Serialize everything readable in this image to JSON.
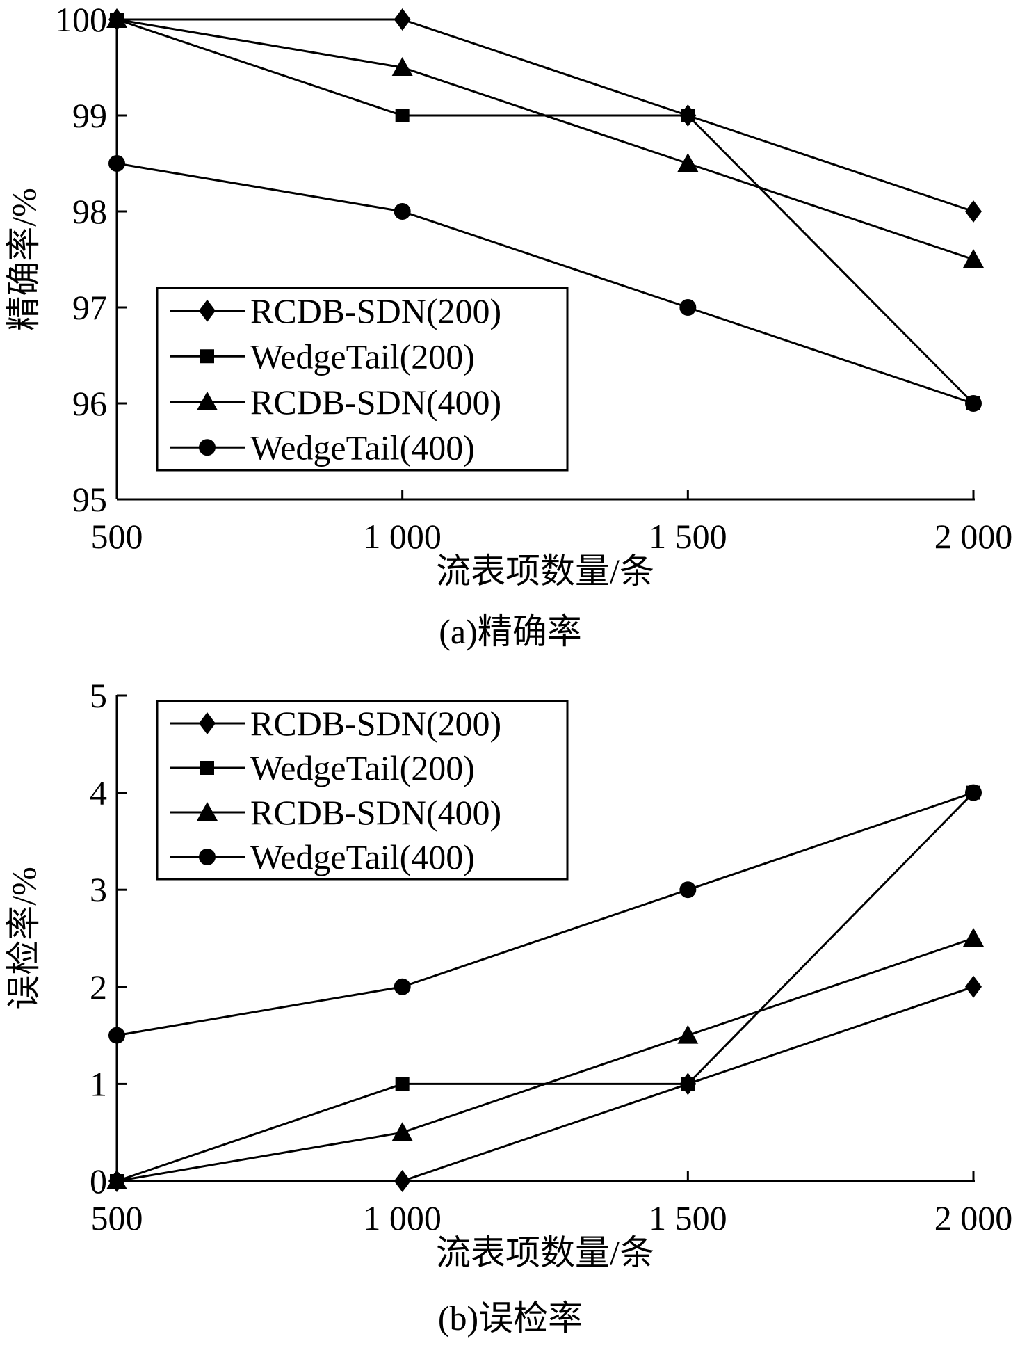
{
  "chart_data": [
    {
      "type": "line",
      "title": "",
      "caption": "(a)精确率",
      "xlabel": "流表项数量/条",
      "ylabel": "精确率/%",
      "x": [
        500,
        1000,
        1500,
        2000
      ],
      "x_tick_labels": [
        "500",
        "1 000",
        "1 500",
        "2 000"
      ],
      "ylim": [
        95,
        100
      ],
      "y_ticks": [
        95,
        96,
        97,
        98,
        99,
        100
      ],
      "y_tick_labels": [
        "95",
        "96",
        "97",
        "98",
        "99",
        "100"
      ],
      "legend_position": "lower-left",
      "series": [
        {
          "name": "RCDB-SDN(200)",
          "marker": "diamond",
          "values": [
            100,
            100,
            99,
            98
          ]
        },
        {
          "name": "WedgeTail(200)",
          "marker": "square",
          "values": [
            100,
            99,
            99,
            96
          ]
        },
        {
          "name": "RCDB-SDN(400)",
          "marker": "triangle",
          "values": [
            100,
            99.5,
            98.5,
            97.5
          ]
        },
        {
          "name": "WedgeTail(400)",
          "marker": "circle",
          "values": [
            98.5,
            98,
            97,
            96
          ]
        }
      ]
    },
    {
      "type": "line",
      "title": "",
      "caption": "(b)误检率",
      "xlabel": "流表项数量/条",
      "ylabel": "误检率/%",
      "x": [
        500,
        1000,
        1500,
        2000
      ],
      "x_tick_labels": [
        "500",
        "1 000",
        "1 500",
        "2 000"
      ],
      "ylim": [
        0,
        5
      ],
      "y_ticks": [
        0,
        1,
        2,
        3,
        4,
        5
      ],
      "y_tick_labels": [
        "0",
        "1",
        "2",
        "3",
        "4",
        "5"
      ],
      "legend_position": "top-left",
      "series": [
        {
          "name": "RCDB-SDN(200)",
          "marker": "diamond",
          "values": [
            0,
            0,
            1,
            2
          ]
        },
        {
          "name": "WedgeTail(200)",
          "marker": "square",
          "values": [
            0,
            1,
            1,
            4
          ]
        },
        {
          "name": "RCDB-SDN(400)",
          "marker": "triangle",
          "values": [
            0,
            0.5,
            1.5,
            2.5
          ]
        },
        {
          "name": "WedgeTail(400)",
          "marker": "circle",
          "values": [
            1.5,
            2,
            3,
            4
          ]
        }
      ]
    }
  ]
}
